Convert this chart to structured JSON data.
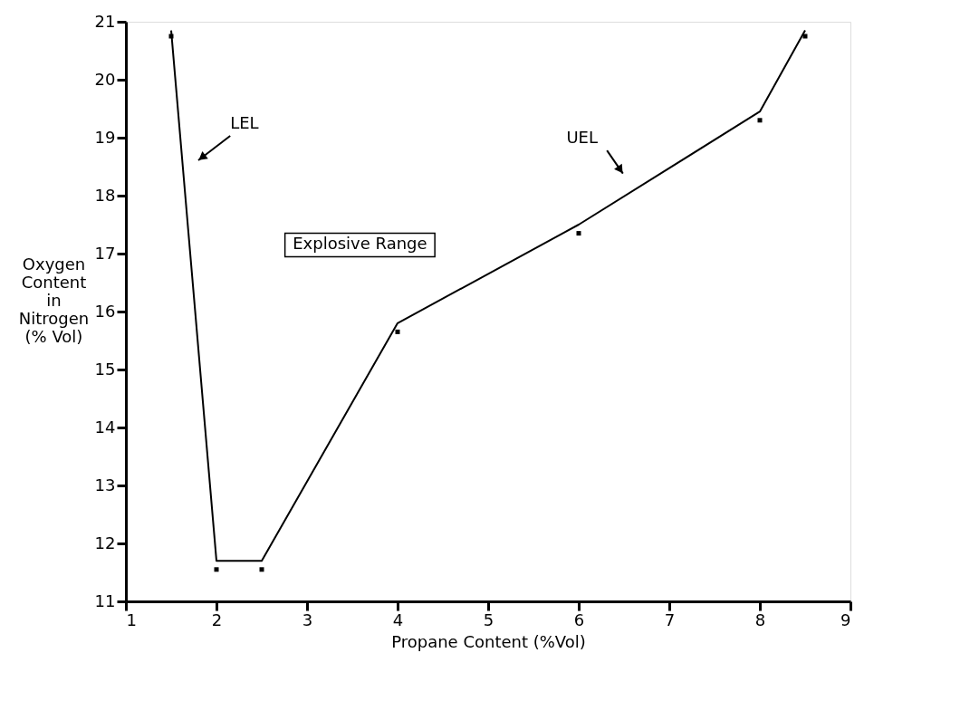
{
  "chart_data": {
    "type": "line",
    "xlabel": "Propane Content (%Vol)",
    "ylabel": "Oxygen\nContent\nin\nNitrogen\n(% Vol)",
    "xlim": [
      1,
      9
    ],
    "xticks": [
      1,
      2,
      3,
      4,
      5,
      6,
      7,
      8,
      9
    ],
    "ylim": [
      11,
      21
    ],
    "yticks": [
      11,
      12,
      13,
      14,
      15,
      16,
      17,
      18,
      19,
      20,
      21
    ],
    "grid": false,
    "marker": "none",
    "line_style": "solid",
    "series": [
      {
        "color": "#000000",
        "x": [
          1.5,
          2,
          2.5,
          4,
          6,
          8,
          8.5
        ],
        "values": [
          20.85,
          11.7,
          11.7,
          15.8,
          17.5,
          19.45,
          20.85
        ]
      },
      {
        "type": "scatter",
        "color": "#000000",
        "marker": "square",
        "x": [
          1.5,
          2,
          2.5,
          4,
          6,
          8,
          8.5
        ],
        "values": [
          20.75,
          11.55,
          11.55,
          15.65,
          17.35,
          19.3,
          20.75
        ]
      }
    ],
    "annotations": [
      "LEL",
      "UEL",
      "Explosive Range"
    ]
  }
}
